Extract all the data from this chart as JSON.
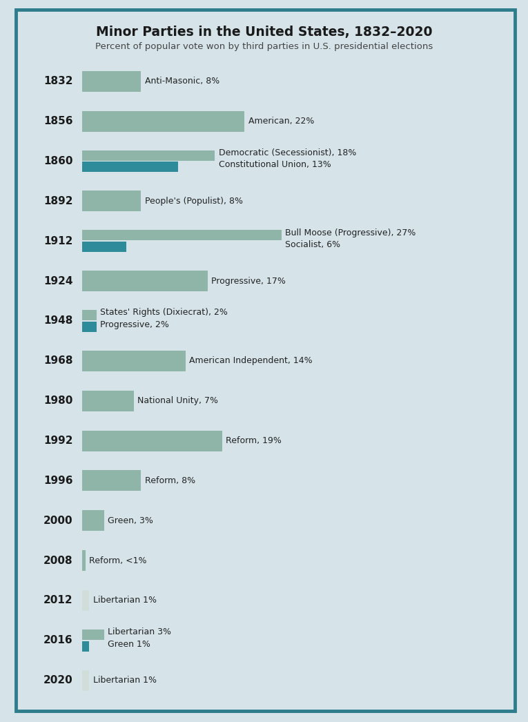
{
  "title": "Minor Parties in the United States, 1832–2020",
  "subtitle": "Percent of popular vote won by third parties in U.S. presidential elections",
  "background_color": "#d6e4ea",
  "border_color": "#2e7d8c",
  "title_color": "#1a1a1a",
  "subtitle_color": "#444444",
  "year_color": "#1a1a1a",
  "label_color": "#222222",
  "rows": [
    {
      "year": "1832",
      "bars": [
        {
          "value": 8,
          "color": "#8fb4a8",
          "label": "Anti-Masonic, 8%"
        }
      ]
    },
    {
      "year": "1856",
      "bars": [
        {
          "value": 22,
          "color": "#8fb4a8",
          "label": "American, 22%"
        }
      ]
    },
    {
      "year": "1860",
      "bars": [
        {
          "value": 18,
          "color": "#8fb4a8",
          "label": "Democratic (Secessionist), 18%"
        },
        {
          "value": 13,
          "color": "#2e8b9a",
          "label": "Constitutional Union, 13%"
        }
      ]
    },
    {
      "year": "1892",
      "bars": [
        {
          "value": 8,
          "color": "#8fb4a8",
          "label": "People's (Populist), 8%"
        }
      ]
    },
    {
      "year": "1912",
      "bars": [
        {
          "value": 27,
          "color": "#8fb4a8",
          "label": "Bull Moose (Progressive), 27%"
        },
        {
          "value": 6,
          "color": "#2e8b9a",
          "label": "Socialist, 6%"
        }
      ]
    },
    {
      "year": "1924",
      "bars": [
        {
          "value": 17,
          "color": "#8fb4a8",
          "label": "Progressive, 17%"
        }
      ]
    },
    {
      "year": "1948",
      "bars": [
        {
          "value": 2,
          "color": "#8fb4a8",
          "label": "States' Rights (Dixiecrat), 2%"
        },
        {
          "value": 2,
          "color": "#2e8b9a",
          "label": "Progressive, 2%"
        }
      ]
    },
    {
      "year": "1968",
      "bars": [
        {
          "value": 14,
          "color": "#8fb4a8",
          "label": "American Independent, 14%"
        }
      ]
    },
    {
      "year": "1980",
      "bars": [
        {
          "value": 7,
          "color": "#8fb4a8",
          "label": "National Unity, 7%"
        }
      ]
    },
    {
      "year": "1992",
      "bars": [
        {
          "value": 19,
          "color": "#8fb4a8",
          "label": "Reform, 19%"
        }
      ]
    },
    {
      "year": "1996",
      "bars": [
        {
          "value": 8,
          "color": "#8fb4a8",
          "label": "Reform, 8%"
        }
      ]
    },
    {
      "year": "2000",
      "bars": [
        {
          "value": 3,
          "color": "#8fb4a8",
          "label": "Green, 3%"
        }
      ]
    },
    {
      "year": "2008",
      "bars": [
        {
          "value": 0.5,
          "color": "#8fb4a8",
          "label": "Reform, <1%"
        }
      ]
    },
    {
      "year": "2012",
      "bars": [
        {
          "value": 1,
          "color": "#d0ddd8",
          "label": "Libertarian 1%"
        }
      ]
    },
    {
      "year": "2016",
      "bars": [
        {
          "value": 3,
          "color": "#8fb4a8",
          "label": "Libertarian 3%"
        },
        {
          "value": 1,
          "color": "#2e8b9a",
          "label": "Green 1%"
        }
      ]
    },
    {
      "year": "2020",
      "bars": [
        {
          "value": 1,
          "color": "#d0ddd8",
          "label": "Libertarian 1%"
        }
      ]
    }
  ],
  "xlim": 30,
  "figsize": [
    7.65,
    10.46
  ],
  "dpi": 100
}
